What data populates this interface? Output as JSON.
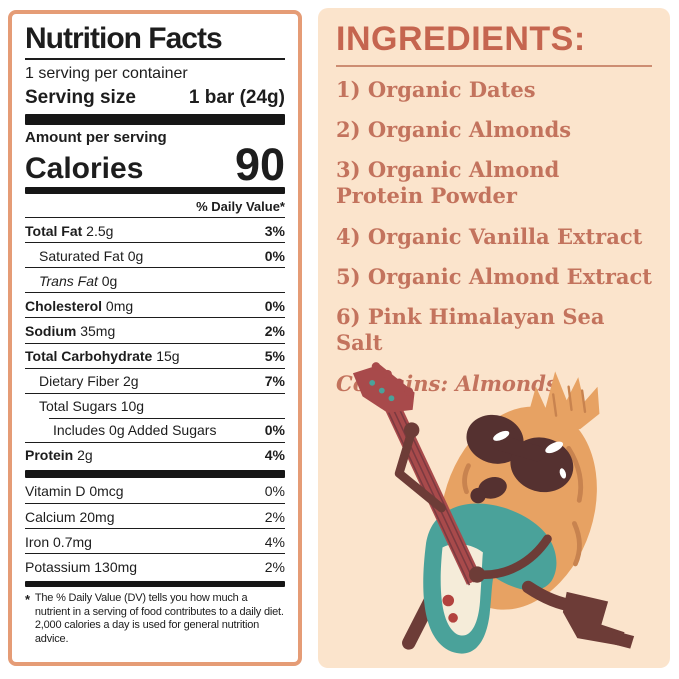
{
  "nutrition": {
    "title": "Nutrition Facts",
    "servings_per_container": "1 serving per container",
    "serving_size_label": "Serving size",
    "serving_size_value": "1 bar (24g)",
    "amount_per_serving": "Amount per serving",
    "calories_label": "Calories",
    "calories_value": "90",
    "daily_value_header": "% Daily Value*",
    "rows": [
      {
        "name": "Total Fat",
        "amount": "2.5g",
        "dv": "3%",
        "bold": true,
        "indent": 0
      },
      {
        "name": "Saturated Fat",
        "amount": "0g",
        "dv": "0%",
        "bold": false,
        "indent": 1
      },
      {
        "name": "Trans Fat",
        "amount": "0g",
        "dv": "",
        "bold": false,
        "indent": 1,
        "italicName": true
      },
      {
        "name": "Cholesterol",
        "amount": "0mg",
        "dv": "0%",
        "bold": true,
        "indent": 0
      },
      {
        "name": "Sodium",
        "amount": "35mg",
        "dv": "2%",
        "bold": true,
        "indent": 0
      },
      {
        "name": "Total Carbohydrate",
        "amount": "15g",
        "dv": "5%",
        "bold": true,
        "indent": 0
      },
      {
        "name": "Dietary Fiber",
        "amount": "2g",
        "dv": "7%",
        "bold": false,
        "indent": 1
      },
      {
        "name": "Total Sugars",
        "amount": "10g",
        "dv": "",
        "bold": false,
        "indent": 1
      },
      {
        "name": "Includes 0g Added Sugars",
        "amount": "",
        "dv": "0%",
        "bold": false,
        "indent": 2
      },
      {
        "name": "Protein",
        "amount": "2g",
        "dv": "4%",
        "bold": true,
        "indent": 0
      }
    ],
    "micronutrients": [
      {
        "name": "Vitamin D",
        "amount": "0mcg",
        "dv": "0%"
      },
      {
        "name": "Calcium",
        "amount": "20mg",
        "dv": "2%"
      },
      {
        "name": "Iron",
        "amount": "0.7mg",
        "dv": "4%"
      },
      {
        "name": "Potassium",
        "amount": "130mg",
        "dv": "2%"
      }
    ],
    "footnote_marker": "*",
    "footnote": "The % Daily Value (DV) tells you how much a nutrient in a serving of food contributes to a daily diet. 2,000 calories a day is used for general nutrition advice."
  },
  "ingredients": {
    "heading": "INGREDIENTS:",
    "items": [
      "1) Organic Dates",
      "2) Organic Almonds",
      "3) Organic Almond Protein Powder",
      "4) Organic Vanilla Extract",
      "5) Organic Almond Extract",
      "6) Pink Himalayan Sea Salt"
    ],
    "contains": "Contains: Almonds"
  },
  "illustration": {
    "name": "almond-character-playing-guitar"
  },
  "colors": {
    "label_border": "#e59c76",
    "panel_peach": "#fbe4cc",
    "heading_salmon": "#c5654f",
    "text_salmon": "#c3735d",
    "bar_black": "#161616",
    "teal": "#4aa29a",
    "guitar_red": "#a84a4b",
    "limb_brown": "#6d3c37",
    "almond_orange": "#e7a263",
    "almond_streak": "#c8834f",
    "sunglasses_brown": "#553130",
    "cream": "#f5ecd9",
    "dot_red": "#b2423e"
  }
}
